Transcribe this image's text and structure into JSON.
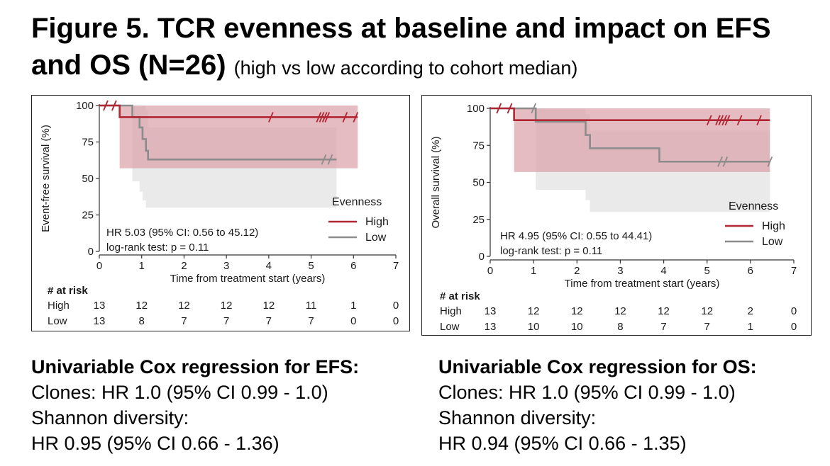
{
  "title": {
    "main": "Figure 5. TCR evenness at baseline and impact on EFS and OS (N=26)",
    "sub": "(high vs low according to cohort median)"
  },
  "colors": {
    "high": "#b22533",
    "low": "#8c8c8c",
    "high_band": "#d9a2ab",
    "low_band": "#d9d9d9"
  },
  "chart_data": [
    {
      "type": "line",
      "subtype": "kaplan-meier",
      "ylabel": "Event-free survival (%)",
      "xlabel": "Time from treatment start (years)",
      "xlim": [
        0,
        7
      ],
      "ylim": [
        0,
        100
      ],
      "xticks": [
        "0",
        "1",
        "2",
        "3",
        "4",
        "5",
        "6",
        "7"
      ],
      "yticks": [
        "0",
        "25",
        "50",
        "75",
        "100"
      ],
      "legend_title": "Evenness",
      "legend_position": "right",
      "annotation_hr": "HR 5.03 (95% CI: 0.56 to 45.12)",
      "annotation_p": "log-rank test: p =  0.11",
      "series": [
        {
          "name": "High",
          "steps": [
            [
              0,
              100
            ],
            [
              0.48,
              100
            ],
            [
              0.48,
              92
            ],
            [
              6.1,
              92
            ]
          ],
          "ci_band": [
            [
              0.48,
              100,
              57
            ],
            [
              6.1,
              100,
              57
            ]
          ],
          "censor_times": [
            0.15,
            0.35,
            4.05,
            5.18,
            5.25,
            5.32,
            5.38,
            5.8,
            6.05
          ]
        },
        {
          "name": "Low",
          "steps": [
            [
              0,
              100
            ],
            [
              0.78,
              100
            ],
            [
              0.78,
              92
            ],
            [
              0.95,
              92
            ],
            [
              0.95,
              85
            ],
            [
              1.02,
              85
            ],
            [
              1.02,
              77
            ],
            [
              1.1,
              77
            ],
            [
              1.1,
              69
            ],
            [
              1.15,
              69
            ],
            [
              1.15,
              63
            ],
            [
              5.6,
              63
            ]
          ],
          "ci_band": [
            [
              0.78,
              100,
              55
            ],
            [
              0.95,
              100,
              48
            ],
            [
              1.02,
              100,
              41
            ],
            [
              1.1,
              97,
              35
            ],
            [
              1.15,
              85,
              30
            ],
            [
              5.6,
              85,
              30
            ]
          ],
          "censor_times": [
            0.15,
            0.35,
            5.3,
            5.45
          ]
        }
      ],
      "risk_table": {
        "title": "# at risk",
        "times": [
          "0",
          "1",
          "2",
          "3",
          "4",
          "5",
          "6",
          "7"
        ],
        "rows": [
          {
            "label": "High",
            "values": [
              "13",
              "12",
              "12",
              "12",
              "12",
              "11",
              "1",
              "0"
            ]
          },
          {
            "label": "Low",
            "values": [
              "13",
              "8",
              "7",
              "7",
              "7",
              "7",
              "0",
              "0"
            ]
          }
        ]
      }
    },
    {
      "type": "line",
      "subtype": "kaplan-meier",
      "ylabel": "Overall survival (%)",
      "xlabel": "Time from treatment start (years)",
      "xlim": [
        0,
        7
      ],
      "ylim": [
        0,
        100
      ],
      "xticks": [
        "0",
        "1",
        "2",
        "3",
        "4",
        "5",
        "6",
        "7"
      ],
      "yticks": [
        "0",
        "25",
        "50",
        "75",
        "100"
      ],
      "legend_title": "Evenness",
      "legend_position": "right",
      "annotation_hr": "HR 4.95 (95% CI: 0.55 to 44.41)",
      "annotation_p": "log-rank test: p =  0.11",
      "series": [
        {
          "name": "High",
          "steps": [
            [
              0,
              100
            ],
            [
              0.55,
              100
            ],
            [
              0.55,
              92
            ],
            [
              6.45,
              92
            ]
          ],
          "ci_band": [
            [
              0.55,
              100,
              57
            ],
            [
              6.45,
              100,
              57
            ]
          ],
          "censor_times": [
            0.2,
            0.45,
            5.05,
            5.25,
            5.32,
            5.4,
            5.47,
            5.75,
            6.2
          ]
        },
        {
          "name": "Low",
          "steps": [
            [
              0,
              100
            ],
            [
              1.05,
              100
            ],
            [
              1.05,
              91
            ],
            [
              2.2,
              91
            ],
            [
              2.2,
              82
            ],
            [
              2.3,
              82
            ],
            [
              2.3,
              73
            ],
            [
              3.9,
              73
            ],
            [
              3.9,
              64
            ],
            [
              6.45,
              64
            ]
          ],
          "ci_band": [
            [
              1.05,
              100,
              55
            ],
            [
              2.2,
              96,
              45
            ],
            [
              2.3,
              85,
              38
            ],
            [
              3.9,
              85,
              30
            ],
            [
              6.45,
              85,
              30
            ]
          ],
          "censor_times": [
            0.2,
            0.45,
            1.0,
            5.3,
            5.42,
            6.45
          ]
        }
      ],
      "risk_table": {
        "title": "# at risk",
        "times": [
          "0",
          "1",
          "2",
          "3",
          "4",
          "5",
          "6",
          "7"
        ],
        "rows": [
          {
            "label": "High",
            "values": [
              "13",
              "12",
              "12",
              "12",
              "12",
              "12",
              "2",
              "0"
            ]
          },
          {
            "label": "Low",
            "values": [
              "13",
              "10",
              "10",
              "8",
              "7",
              "7",
              "1",
              "0"
            ]
          }
        ]
      }
    }
  ],
  "cox": {
    "efs": {
      "heading": "Univariable Cox regression for EFS:",
      "line1": "Clones: HR 1.0 (95% CI 0.99 - 1.0)",
      "line2": "Shannon diversity:",
      "line3": "HR 0.95 (95% CI 0.66 - 1.36)"
    },
    "os": {
      "heading": "Univariable Cox regression for OS:",
      "line1": "Clones: HR 1.0 (95% CI 0.99 - 1.0)",
      "line2": "Shannon diversity:",
      "line3": "HR 0.94 (95% CI 0.66 - 1.35)"
    }
  }
}
